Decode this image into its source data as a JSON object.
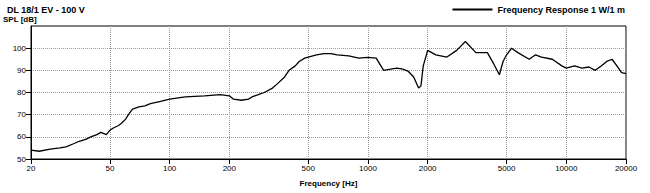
{
  "chart_data": {
    "type": "line",
    "title": "DL 18/1 EV - 100 V",
    "x_label": "Frequency [Hz]",
    "y_label": "SPL [dB]",
    "log": "x",
    "grid": true,
    "legend": "top-right",
    "xlim": [
      20,
      20000
    ],
    "xticks": [
      20,
      50,
      100,
      200,
      500,
      1000,
      2000,
      5000,
      10000,
      20000
    ],
    "ylim": [
      50,
      110
    ],
    "yticks": [
      50,
      60,
      70,
      80,
      90,
      100
    ],
    "series": [
      {
        "name": "Frequency Response 1 W/1 m",
        "color": "#000000",
        "line_style": "solid",
        "x": [
          20,
          22,
          25,
          28,
          30,
          33,
          35,
          38,
          40,
          43,
          45,
          48,
          50,
          52,
          55,
          57,
          60,
          62,
          65,
          70,
          75,
          80,
          90,
          100,
          120,
          150,
          180,
          200,
          210,
          230,
          250,
          260,
          280,
          300,
          330,
          350,
          380,
          400,
          430,
          450,
          480,
          500,
          550,
          600,
          650,
          700,
          800,
          900,
          1000,
          1100,
          1200,
          1300,
          1400,
          1500,
          1600,
          1700,
          1800,
          1850,
          1900,
          2000,
          2200,
          2500,
          2800,
          3100,
          3500,
          4000,
          4300,
          4600,
          4800,
          5000,
          5300,
          5700,
          6500,
          7000,
          7500,
          8500,
          9500,
          10000,
          11000,
          12000,
          13000,
          14000,
          15000,
          16000,
          17000,
          18000,
          19000,
          20000
        ],
        "values": [
          54,
          53.5,
          54.5,
          55,
          55.5,
          57,
          58,
          59,
          60,
          61,
          62,
          61,
          63,
          64,
          65,
          66,
          68,
          70,
          72.5,
          73.5,
          74,
          75,
          76,
          77,
          78,
          78.5,
          79,
          78.5,
          77,
          76.5,
          77,
          78,
          79,
          80,
          82,
          84,
          87,
          90,
          92,
          94,
          95.5,
          96,
          97,
          97.5,
          97.5,
          97,
          96.5,
          95.5,
          95.8,
          95.5,
          90,
          90.5,
          91,
          90.5,
          89.5,
          87,
          82,
          83,
          92,
          99,
          97,
          96,
          99,
          103,
          98,
          98,
          93,
          88,
          94,
          97,
          100,
          98,
          95,
          97,
          96,
          95,
          92,
          91,
          92,
          91,
          91.5,
          90,
          92,
          94,
          95,
          92,
          89,
          88.5
        ]
      }
    ]
  }
}
